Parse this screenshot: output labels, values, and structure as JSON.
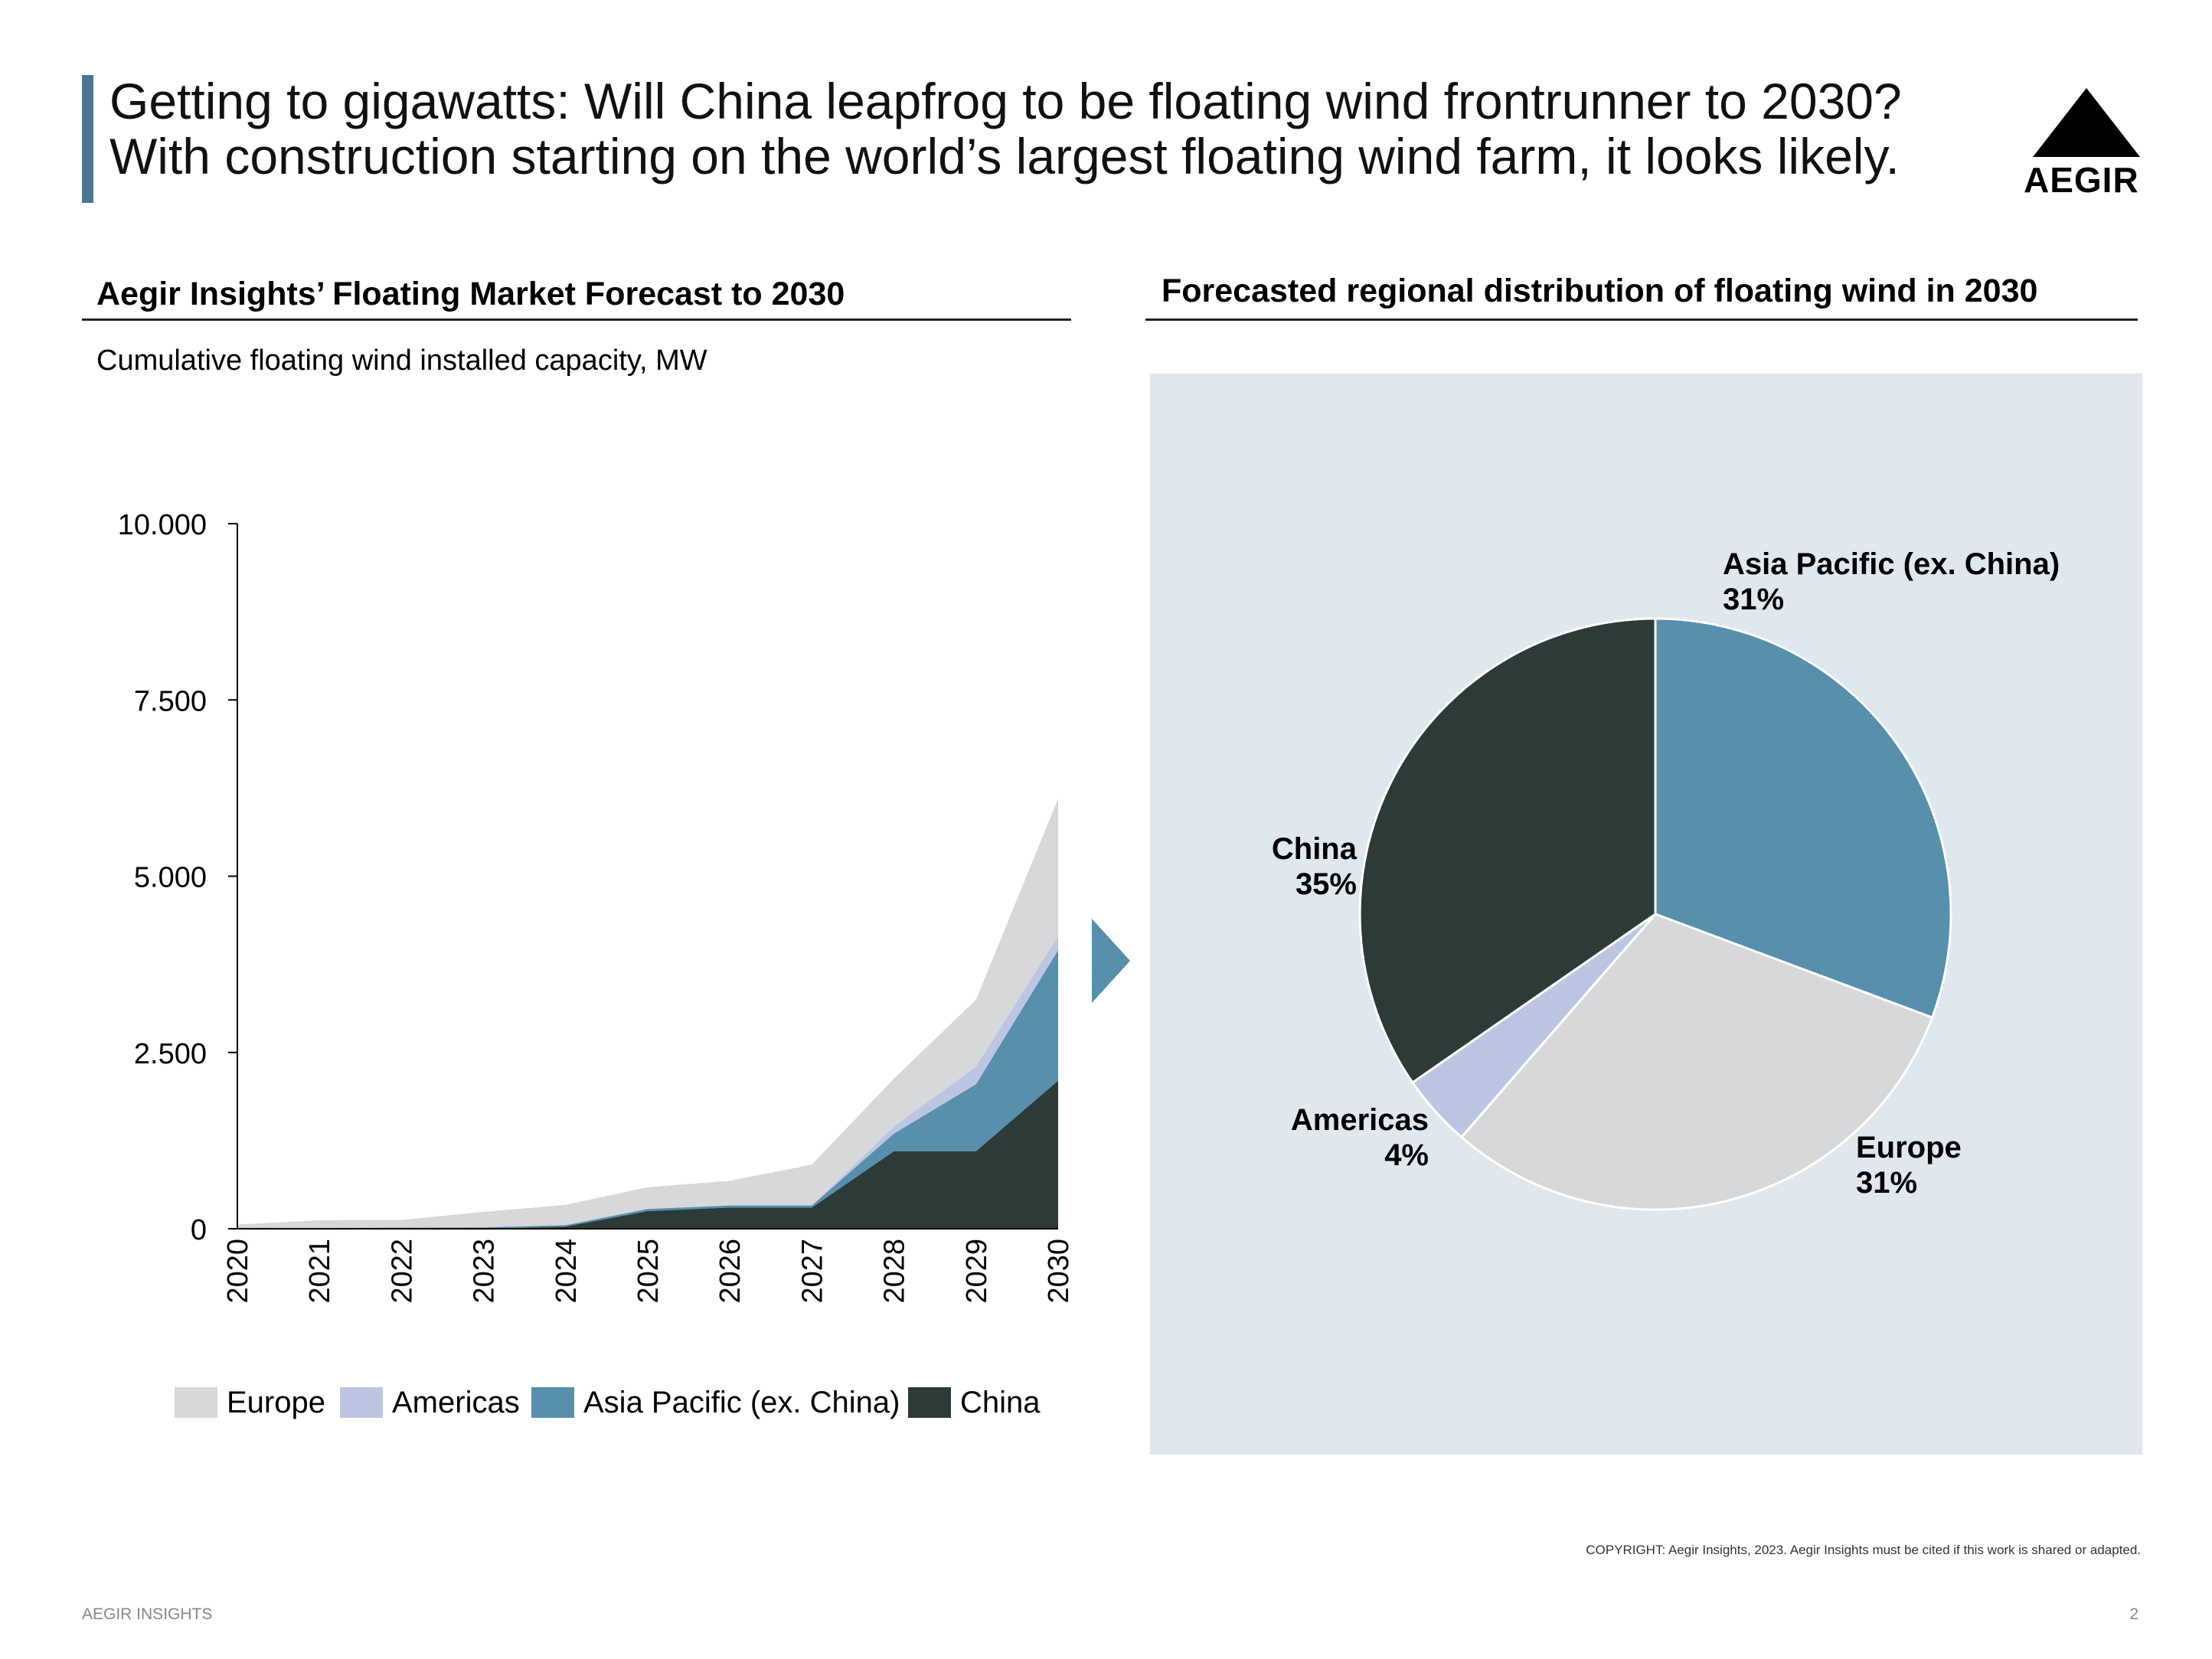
{
  "header": {
    "line1": "Getting to gigawatts: Will China leapfrog to be floating wind frontrunner to 2030?",
    "line2": "With construction starting on the world’s largest floating wind farm, it looks likely.",
    "logo_text": "AEGIR",
    "accent_color": "#4e7591"
  },
  "left_panel": {
    "title": "Aegir Insights’ Floating Market Forecast to 2030",
    "subtitle": "Cumulative floating wind installed capacity, MW"
  },
  "right_panel": {
    "title": "Forecasted regional distribution of floating wind in 2030",
    "background_color": "#dfe7ef"
  },
  "footer": {
    "copyright": "COPYRIGHT: Aegir Insights, 2023. Aegir Insights must be cited if this work is shared or adapted.",
    "brand": "AEGIR INSIGHTS",
    "page_number": "2"
  },
  "chart_data": [
    {
      "type": "area",
      "stacked": true,
      "x": [
        "2020",
        "2021",
        "2022",
        "2023",
        "2024",
        "2025",
        "2026",
        "2027",
        "2028",
        "2029",
        "2030"
      ],
      "ylim": [
        0,
        10000
      ],
      "yticks": [
        0,
        2500,
        5000,
        7500,
        10000
      ],
      "ytick_labels": [
        "0",
        "2.500",
        "5.000",
        "7.500",
        "10.000"
      ],
      "grid": false,
      "legend_position": "bottom",
      "series": [
        {
          "name": "China",
          "color": "#2c3a38",
          "values": [
            0,
            0,
            0,
            0,
            30,
            250,
            300,
            300,
            1100,
            1100,
            2100
          ]
        },
        {
          "name": "Asia Pacific (ex. China)",
          "color": "#578fad",
          "values": [
            0,
            10,
            15,
            20,
            20,
            30,
            30,
            30,
            250,
            950,
            1850
          ]
        },
        {
          "name": "Americas",
          "color": "#bcc6e3",
          "values": [
            0,
            0,
            0,
            0,
            0,
            0,
            0,
            0,
            100,
            250,
            200
          ]
        },
        {
          "name": "Europe",
          "color": "#d7d8da",
          "values": [
            60,
            110,
            110,
            220,
            290,
            310,
            350,
            580,
            680,
            950,
            1950
          ]
        }
      ],
      "legend_order": [
        "Europe",
        "Americas",
        "Asia Pacific (ex. China)",
        "China"
      ]
    },
    {
      "type": "pie",
      "slices": [
        {
          "name": "Asia Pacific (ex. China)",
          "value": 31,
          "label": "31%",
          "color": "#578fad"
        },
        {
          "name": "Europe",
          "value": 31,
          "label": "31%",
          "color": "#d7d8da"
        },
        {
          "name": "Americas",
          "value": 4,
          "label": "4%",
          "color": "#bcc6e3"
        },
        {
          "name": "China",
          "value": 35,
          "label": "35%",
          "color": "#2c3a38"
        }
      ],
      "start_angle_deg": 0,
      "direction": "clockwise"
    }
  ]
}
